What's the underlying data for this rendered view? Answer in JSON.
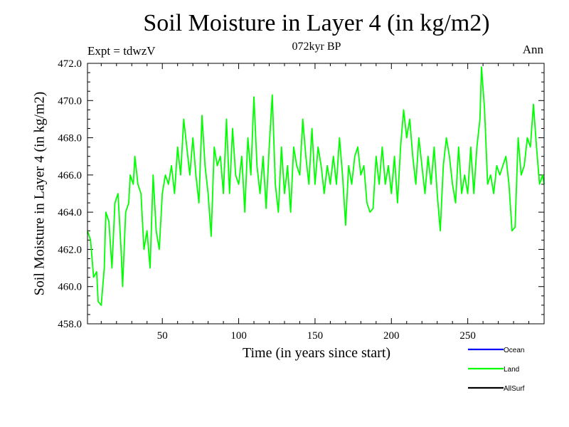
{
  "header": {
    "title": "Soil Moisture in Layer 4 (in kg/m2)",
    "subtitle": "072kyr BP",
    "experiment": "Expt = tdwzV",
    "season": "Ann"
  },
  "chart_data": {
    "type": "line",
    "title": "Soil Moisture in Layer 4 (in kg/m2)",
    "xlabel": "Time (in years since start)",
    "ylabel": "Soil Moisture in Layer 4 (in kg/m2)",
    "xlim": [
      1,
      300
    ],
    "ylim": [
      458.0,
      472.0
    ],
    "x_ticks": [
      50,
      100,
      150,
      200,
      250
    ],
    "x_tick_labels": [
      "50",
      "100",
      "150",
      "200",
      "250"
    ],
    "y_ticks": [
      458,
      460,
      462,
      464,
      466,
      468,
      470,
      472
    ],
    "y_tick_labels": [
      "458.0",
      "460.0",
      "462.0",
      "464.0",
      "466.0",
      "468.0",
      "470.0",
      "472.0"
    ],
    "legend": [
      "Ocean",
      "Land",
      "AllSurf"
    ],
    "series": [
      {
        "name": "Ocean",
        "color": "#0000ff",
        "values": []
      },
      {
        "name": "Land",
        "color": "#00ff00",
        "values": [
          {
            "x": 1,
            "y": 463.0
          },
          {
            "x": 3,
            "y": 462.5
          },
          {
            "x": 5,
            "y": 460.5
          },
          {
            "x": 7,
            "y": 460.8
          },
          {
            "x": 8,
            "y": 459.2
          },
          {
            "x": 10,
            "y": 459.0
          },
          {
            "x": 12,
            "y": 461.0
          },
          {
            "x": 13,
            "y": 464.0
          },
          {
            "x": 15,
            "y": 463.5
          },
          {
            "x": 17,
            "y": 461.0
          },
          {
            "x": 19,
            "y": 464.5
          },
          {
            "x": 21,
            "y": 465.0
          },
          {
            "x": 23,
            "y": 462.0
          },
          {
            "x": 24,
            "y": 460.0
          },
          {
            "x": 26,
            "y": 464.0
          },
          {
            "x": 28,
            "y": 464.5
          },
          {
            "x": 29,
            "y": 466.0
          },
          {
            "x": 31,
            "y": 465.5
          },
          {
            "x": 32,
            "y": 467.0
          },
          {
            "x": 34,
            "y": 465.5
          },
          {
            "x": 36,
            "y": 465.0
          },
          {
            "x": 38,
            "y": 462.0
          },
          {
            "x": 40,
            "y": 463.0
          },
          {
            "x": 42,
            "y": 461.0
          },
          {
            "x": 44,
            "y": 466.0
          },
          {
            "x": 46,
            "y": 463.0
          },
          {
            "x": 48,
            "y": 462.0
          },
          {
            "x": 50,
            "y": 465.0
          },
          {
            "x": 52,
            "y": 466.0
          },
          {
            "x": 54,
            "y": 465.5
          },
          {
            "x": 56,
            "y": 466.5
          },
          {
            "x": 58,
            "y": 465.0
          },
          {
            "x": 60,
            "y": 467.5
          },
          {
            "x": 62,
            "y": 466.0
          },
          {
            "x": 64,
            "y": 469.0
          },
          {
            "x": 66,
            "y": 467.5
          },
          {
            "x": 68,
            "y": 466.0
          },
          {
            "x": 70,
            "y": 468.0
          },
          {
            "x": 72,
            "y": 466.0
          },
          {
            "x": 74,
            "y": 464.5
          },
          {
            "x": 76,
            "y": 469.2
          },
          {
            "x": 78,
            "y": 466.5
          },
          {
            "x": 80,
            "y": 465.0
          },
          {
            "x": 82,
            "y": 462.7
          },
          {
            "x": 84,
            "y": 467.5
          },
          {
            "x": 86,
            "y": 466.5
          },
          {
            "x": 88,
            "y": 467.0
          },
          {
            "x": 90,
            "y": 465.0
          },
          {
            "x": 92,
            "y": 469.0
          },
          {
            "x": 94,
            "y": 465.0
          },
          {
            "x": 96,
            "y": 468.5
          },
          {
            "x": 98,
            "y": 466.0
          },
          {
            "x": 100,
            "y": 465.5
          },
          {
            "x": 102,
            "y": 467.0
          },
          {
            "x": 104,
            "y": 464.0
          },
          {
            "x": 106,
            "y": 468.0
          },
          {
            "x": 108,
            "y": 466.0
          },
          {
            "x": 110,
            "y": 470.2
          },
          {
            "x": 112,
            "y": 466.5
          },
          {
            "x": 114,
            "y": 465.0
          },
          {
            "x": 116,
            "y": 467.0
          },
          {
            "x": 118,
            "y": 464.2
          },
          {
            "x": 120,
            "y": 467.5
          },
          {
            "x": 122,
            "y": 470.3
          },
          {
            "x": 124,
            "y": 465.5
          },
          {
            "x": 126,
            "y": 464.0
          },
          {
            "x": 128,
            "y": 467.5
          },
          {
            "x": 130,
            "y": 465.0
          },
          {
            "x": 132,
            "y": 466.5
          },
          {
            "x": 134,
            "y": 464.0
          },
          {
            "x": 136,
            "y": 467.5
          },
          {
            "x": 138,
            "y": 466.5
          },
          {
            "x": 140,
            "y": 466.0
          },
          {
            "x": 142,
            "y": 469.0
          },
          {
            "x": 144,
            "y": 467.0
          },
          {
            "x": 146,
            "y": 465.5
          },
          {
            "x": 148,
            "y": 468.5
          },
          {
            "x": 150,
            "y": 465.5
          },
          {
            "x": 152,
            "y": 467.5
          },
          {
            "x": 154,
            "y": 466.5
          },
          {
            "x": 156,
            "y": 465.0
          },
          {
            "x": 158,
            "y": 466.5
          },
          {
            "x": 160,
            "y": 465.5
          },
          {
            "x": 162,
            "y": 467.0
          },
          {
            "x": 164,
            "y": 465.5
          },
          {
            "x": 166,
            "y": 468.0
          },
          {
            "x": 168,
            "y": 466.0
          },
          {
            "x": 170,
            "y": 463.3
          },
          {
            "x": 172,
            "y": 466.5
          },
          {
            "x": 174,
            "y": 465.5
          },
          {
            "x": 176,
            "y": 467.0
          },
          {
            "x": 178,
            "y": 467.5
          },
          {
            "x": 180,
            "y": 466.0
          },
          {
            "x": 182,
            "y": 466.5
          },
          {
            "x": 184,
            "y": 464.5
          },
          {
            "x": 186,
            "y": 464.0
          },
          {
            "x": 188,
            "y": 464.2
          },
          {
            "x": 190,
            "y": 467.0
          },
          {
            "x": 192,
            "y": 465.5
          },
          {
            "x": 194,
            "y": 467.5
          },
          {
            "x": 196,
            "y": 465.5
          },
          {
            "x": 198,
            "y": 466.5
          },
          {
            "x": 200,
            "y": 465.0
          },
          {
            "x": 202,
            "y": 467.0
          },
          {
            "x": 204,
            "y": 464.5
          },
          {
            "x": 206,
            "y": 467.5
          },
          {
            "x": 208,
            "y": 469.5
          },
          {
            "x": 210,
            "y": 468.0
          },
          {
            "x": 212,
            "y": 469.0
          },
          {
            "x": 214,
            "y": 467.0
          },
          {
            "x": 216,
            "y": 465.5
          },
          {
            "x": 218,
            "y": 468.0
          },
          {
            "x": 220,
            "y": 466.5
          },
          {
            "x": 222,
            "y": 465.0
          },
          {
            "x": 224,
            "y": 467.0
          },
          {
            "x": 226,
            "y": 465.5
          },
          {
            "x": 228,
            "y": 467.5
          },
          {
            "x": 230,
            "y": 465.0
          },
          {
            "x": 232,
            "y": 463.0
          },
          {
            "x": 234,
            "y": 466.5
          },
          {
            "x": 236,
            "y": 468.0
          },
          {
            "x": 238,
            "y": 467.0
          },
          {
            "x": 240,
            "y": 465.5
          },
          {
            "x": 242,
            "y": 464.5
          },
          {
            "x": 244,
            "y": 467.5
          },
          {
            "x": 246,
            "y": 465.0
          },
          {
            "x": 248,
            "y": 466.0
          },
          {
            "x": 250,
            "y": 465.0
          },
          {
            "x": 252,
            "y": 467.5
          },
          {
            "x": 254,
            "y": 465.0
          },
          {
            "x": 256,
            "y": 467.5
          },
          {
            "x": 258,
            "y": 469.0
          },
          {
            "x": 259,
            "y": 471.8
          },
          {
            "x": 261,
            "y": 469.5
          },
          {
            "x": 263,
            "y": 465.5
          },
          {
            "x": 265,
            "y": 466.0
          },
          {
            "x": 267,
            "y": 465.0
          },
          {
            "x": 269,
            "y": 466.5
          },
          {
            "x": 271,
            "y": 466.0
          },
          {
            "x": 273,
            "y": 466.5
          },
          {
            "x": 275,
            "y": 467.0
          },
          {
            "x": 277,
            "y": 465.5
          },
          {
            "x": 279,
            "y": 463.0
          },
          {
            "x": 281,
            "y": 463.2
          },
          {
            "x": 283,
            "y": 468.0
          },
          {
            "x": 285,
            "y": 466.0
          },
          {
            "x": 287,
            "y": 466.5
          },
          {
            "x": 289,
            "y": 468.0
          },
          {
            "x": 291,
            "y": 467.5
          },
          {
            "x": 293,
            "y": 469.8
          },
          {
            "x": 295,
            "y": 467.5
          },
          {
            "x": 297,
            "y": 465.5
          },
          {
            "x": 299,
            "y": 466.0
          },
          {
            "x": 300,
            "y": 465.5
          }
        ]
      },
      {
        "name": "AllSurf",
        "color": "#000000",
        "values": []
      }
    ]
  }
}
